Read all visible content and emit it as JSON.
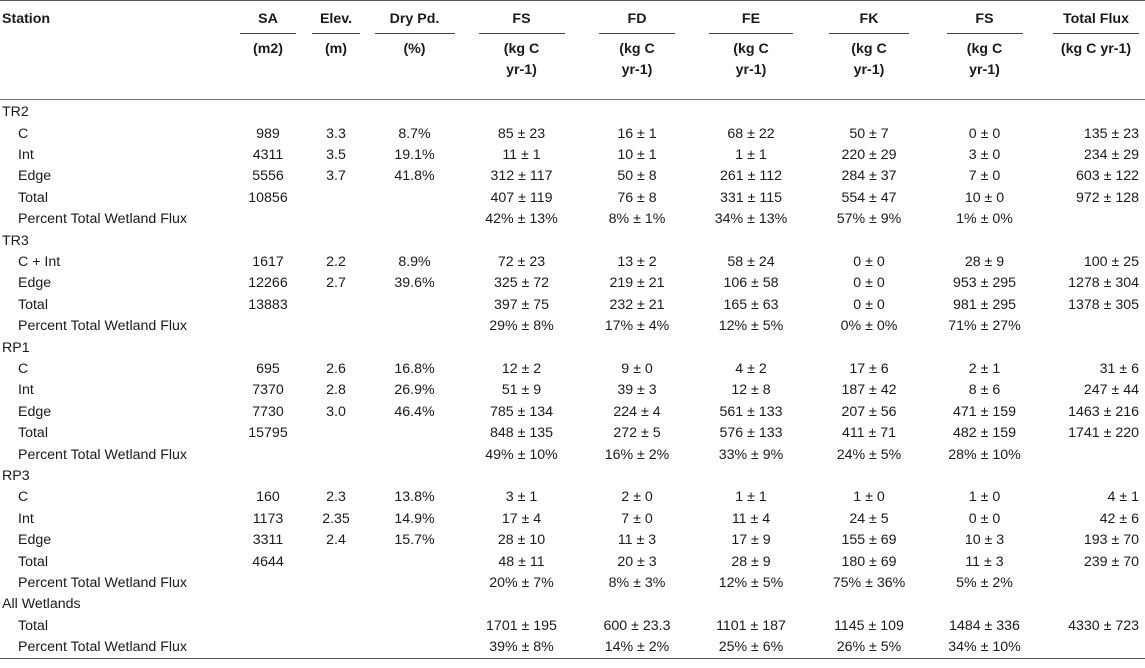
{
  "headers": {
    "row1": [
      "Station",
      "SA",
      "Elev.",
      "Dry Pd.",
      "FS",
      "FD",
      "FE",
      "FK",
      "FS",
      "Total Flux"
    ],
    "row2": [
      "",
      "(m2)",
      "(m)",
      "(%)",
      "(kg C\nyr-1)",
      "(kg C\nyr-1)",
      "(kg C\nyr-1)",
      "(kg C\nyr-1)",
      "(kg C\nyr-1)",
      "(kg C yr-1)"
    ]
  },
  "rows": [
    {
      "type": "group",
      "label": "TR2"
    },
    {
      "type": "data",
      "cells": [
        "C",
        "989",
        "3.3",
        "8.7%",
        "85 ± 23",
        "16 ± 1",
        "68 ± 22",
        "50 ± 7",
        "0 ± 0",
        "135 ± 23"
      ]
    },
    {
      "type": "data",
      "cells": [
        "Int",
        "4311",
        "3.5",
        "19.1%",
        "11 ± 1",
        "10 ± 1",
        "1 ± 1",
        "220 ± 29",
        "3 ± 0",
        "234 ± 29"
      ]
    },
    {
      "type": "data",
      "cells": [
        "Edge",
        "5556",
        "3.7",
        "41.8%",
        "312 ± 117",
        "50 ± 8",
        "261 ± 112",
        "284 ± 37",
        "7 ± 0",
        "603 ± 122"
      ]
    },
    {
      "type": "data",
      "cells": [
        "Total",
        "10856",
        "",
        "",
        "407 ± 119",
        "76 ± 8",
        "331 ± 115",
        "554 ± 47",
        "10 ± 0",
        "972 ± 128"
      ]
    },
    {
      "type": "data",
      "cells": [
        "Percent Total Wetland Flux",
        "",
        "",
        "",
        "42% ± 13%",
        "8% ± 1%",
        "34% ± 13%",
        "57% ± 9%",
        "1% ± 0%",
        ""
      ]
    },
    {
      "type": "group",
      "label": "TR3"
    },
    {
      "type": "data",
      "cells": [
        "C + Int",
        "1617",
        "2.2",
        "8.9%",
        "72 ± 23",
        "13 ± 2",
        "58 ± 24",
        "0 ± 0",
        "28 ± 9",
        "100 ± 25"
      ]
    },
    {
      "type": "data",
      "cells": [
        "Edge",
        "12266",
        "2.7",
        "39.6%",
        "325 ± 72",
        "219 ± 21",
        "106 ± 58",
        "0 ± 0",
        "953 ± 295",
        "1278 ± 304"
      ]
    },
    {
      "type": "data",
      "cells": [
        "Total",
        "13883",
        "",
        "",
        "397 ± 75",
        "232 ± 21",
        "165 ± 63",
        "0 ± 0",
        "981 ± 295",
        "1378 ± 305"
      ]
    },
    {
      "type": "data",
      "cells": [
        "Percent Total Wetland Flux",
        "",
        "",
        "",
        "29% ± 8%",
        "17% ± 4%",
        "12% ± 5%",
        "0% ± 0%",
        "71% ± 27%",
        ""
      ]
    },
    {
      "type": "group",
      "label": "RP1"
    },
    {
      "type": "data",
      "cells": [
        "C",
        "695",
        "2.6",
        "16.8%",
        "12 ± 2",
        "9 ± 0",
        "4 ± 2",
        "17 ± 6",
        "2 ± 1",
        "31 ± 6"
      ]
    },
    {
      "type": "data",
      "cells": [
        "Int",
        "7370",
        "2.8",
        "26.9%",
        "51 ± 9",
        "39 ± 3",
        "12 ± 8",
        "187 ± 42",
        "8 ± 6",
        "247 ± 44"
      ]
    },
    {
      "type": "data",
      "cells": [
        "Edge",
        "7730",
        "3.0",
        "46.4%",
        "785 ± 134",
        "224 ± 4",
        "561 ± 133",
        "207 ± 56",
        "471 ± 159",
        "1463 ± 216"
      ]
    },
    {
      "type": "data",
      "cells": [
        "Total",
        "15795",
        "",
        "",
        "848 ± 135",
        "272 ± 5",
        "576 ± 133",
        "411 ± 71",
        "482 ± 159",
        "1741 ± 220"
      ]
    },
    {
      "type": "data",
      "cells": [
        "Percent Total Wetland Flux",
        "",
        "",
        "",
        "49% ± 10%",
        "16% ± 2%",
        "33% ± 9%",
        "24% ± 5%",
        "28% ± 10%",
        ""
      ]
    },
    {
      "type": "group",
      "label": "RP3"
    },
    {
      "type": "data",
      "cells": [
        "C",
        "160",
        "2.3",
        "13.8%",
        "3 ± 1",
        "2 ± 0",
        "1 ± 1",
        "1 ± 0",
        "1 ± 0",
        "4 ± 1"
      ]
    },
    {
      "type": "data",
      "cells": [
        "Int",
        "1173",
        "2.35",
        "14.9%",
        "17 ± 4",
        "7 ± 0",
        "11 ± 4",
        "24 ± 5",
        "0 ± 0",
        "42 ± 6"
      ]
    },
    {
      "type": "data",
      "cells": [
        "Edge",
        "3311",
        "2.4",
        "15.7%",
        "28 ± 10",
        "11 ± 3",
        "17 ± 9",
        "155 ± 69",
        "10 ± 3",
        "193 ± 70"
      ]
    },
    {
      "type": "data",
      "cells": [
        "Total",
        "4644",
        "",
        "",
        "48 ± 11",
        "20 ± 3",
        "28 ± 9",
        "180 ± 69",
        "11 ± 3",
        "239 ± 70"
      ]
    },
    {
      "type": "data",
      "cells": [
        "Percent Total Wetland Flux",
        "",
        "",
        "",
        "20% ± 7%",
        "8% ± 3%",
        "12% ± 5%",
        "75% ± 36%",
        "5% ± 2%",
        ""
      ]
    },
    {
      "type": "group",
      "label": "All Wetlands"
    },
    {
      "type": "data",
      "cells": [
        "Total",
        "",
        "",
        "",
        "1701 ± 195",
        "600 ± 23.3",
        "1101 ± 187",
        "1145 ± 109",
        "1484 ± 336",
        "4330 ± 723"
      ]
    },
    {
      "type": "data",
      "cells": [
        "Percent Total Wetland Flux",
        "",
        "",
        "",
        "39% ± 8%",
        "14% ± 2%",
        "25% ± 6%",
        "26% ± 5%",
        "34% ± 10%",
        ""
      ]
    }
  ]
}
